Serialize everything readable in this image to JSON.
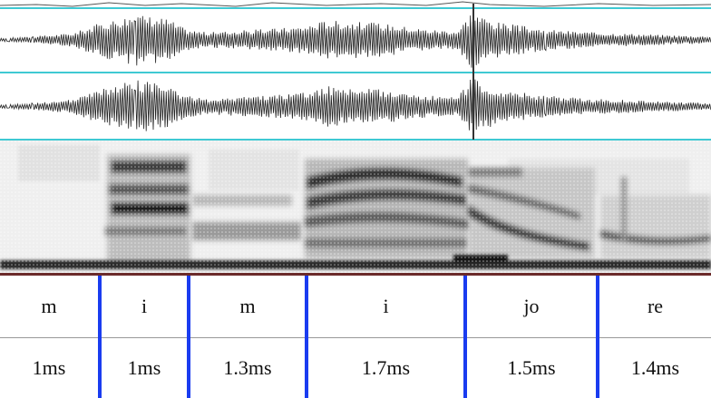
{
  "tiers": {
    "syllables": [
      {
        "label": "m",
        "duration": "1ms"
      },
      {
        "label": "i",
        "duration": "1ms"
      },
      {
        "label": "m",
        "duration": "1.3ms"
      },
      {
        "label": "i",
        "duration": "1.7ms"
      },
      {
        "label": "jo",
        "duration": "1.5ms"
      },
      {
        "label": "re",
        "duration": "1.4ms"
      }
    ]
  },
  "colors": {
    "boundary": "#1a3cf0",
    "separator": "#3fc9d3",
    "waveform": "#222222",
    "cursor": "#333333"
  }
}
